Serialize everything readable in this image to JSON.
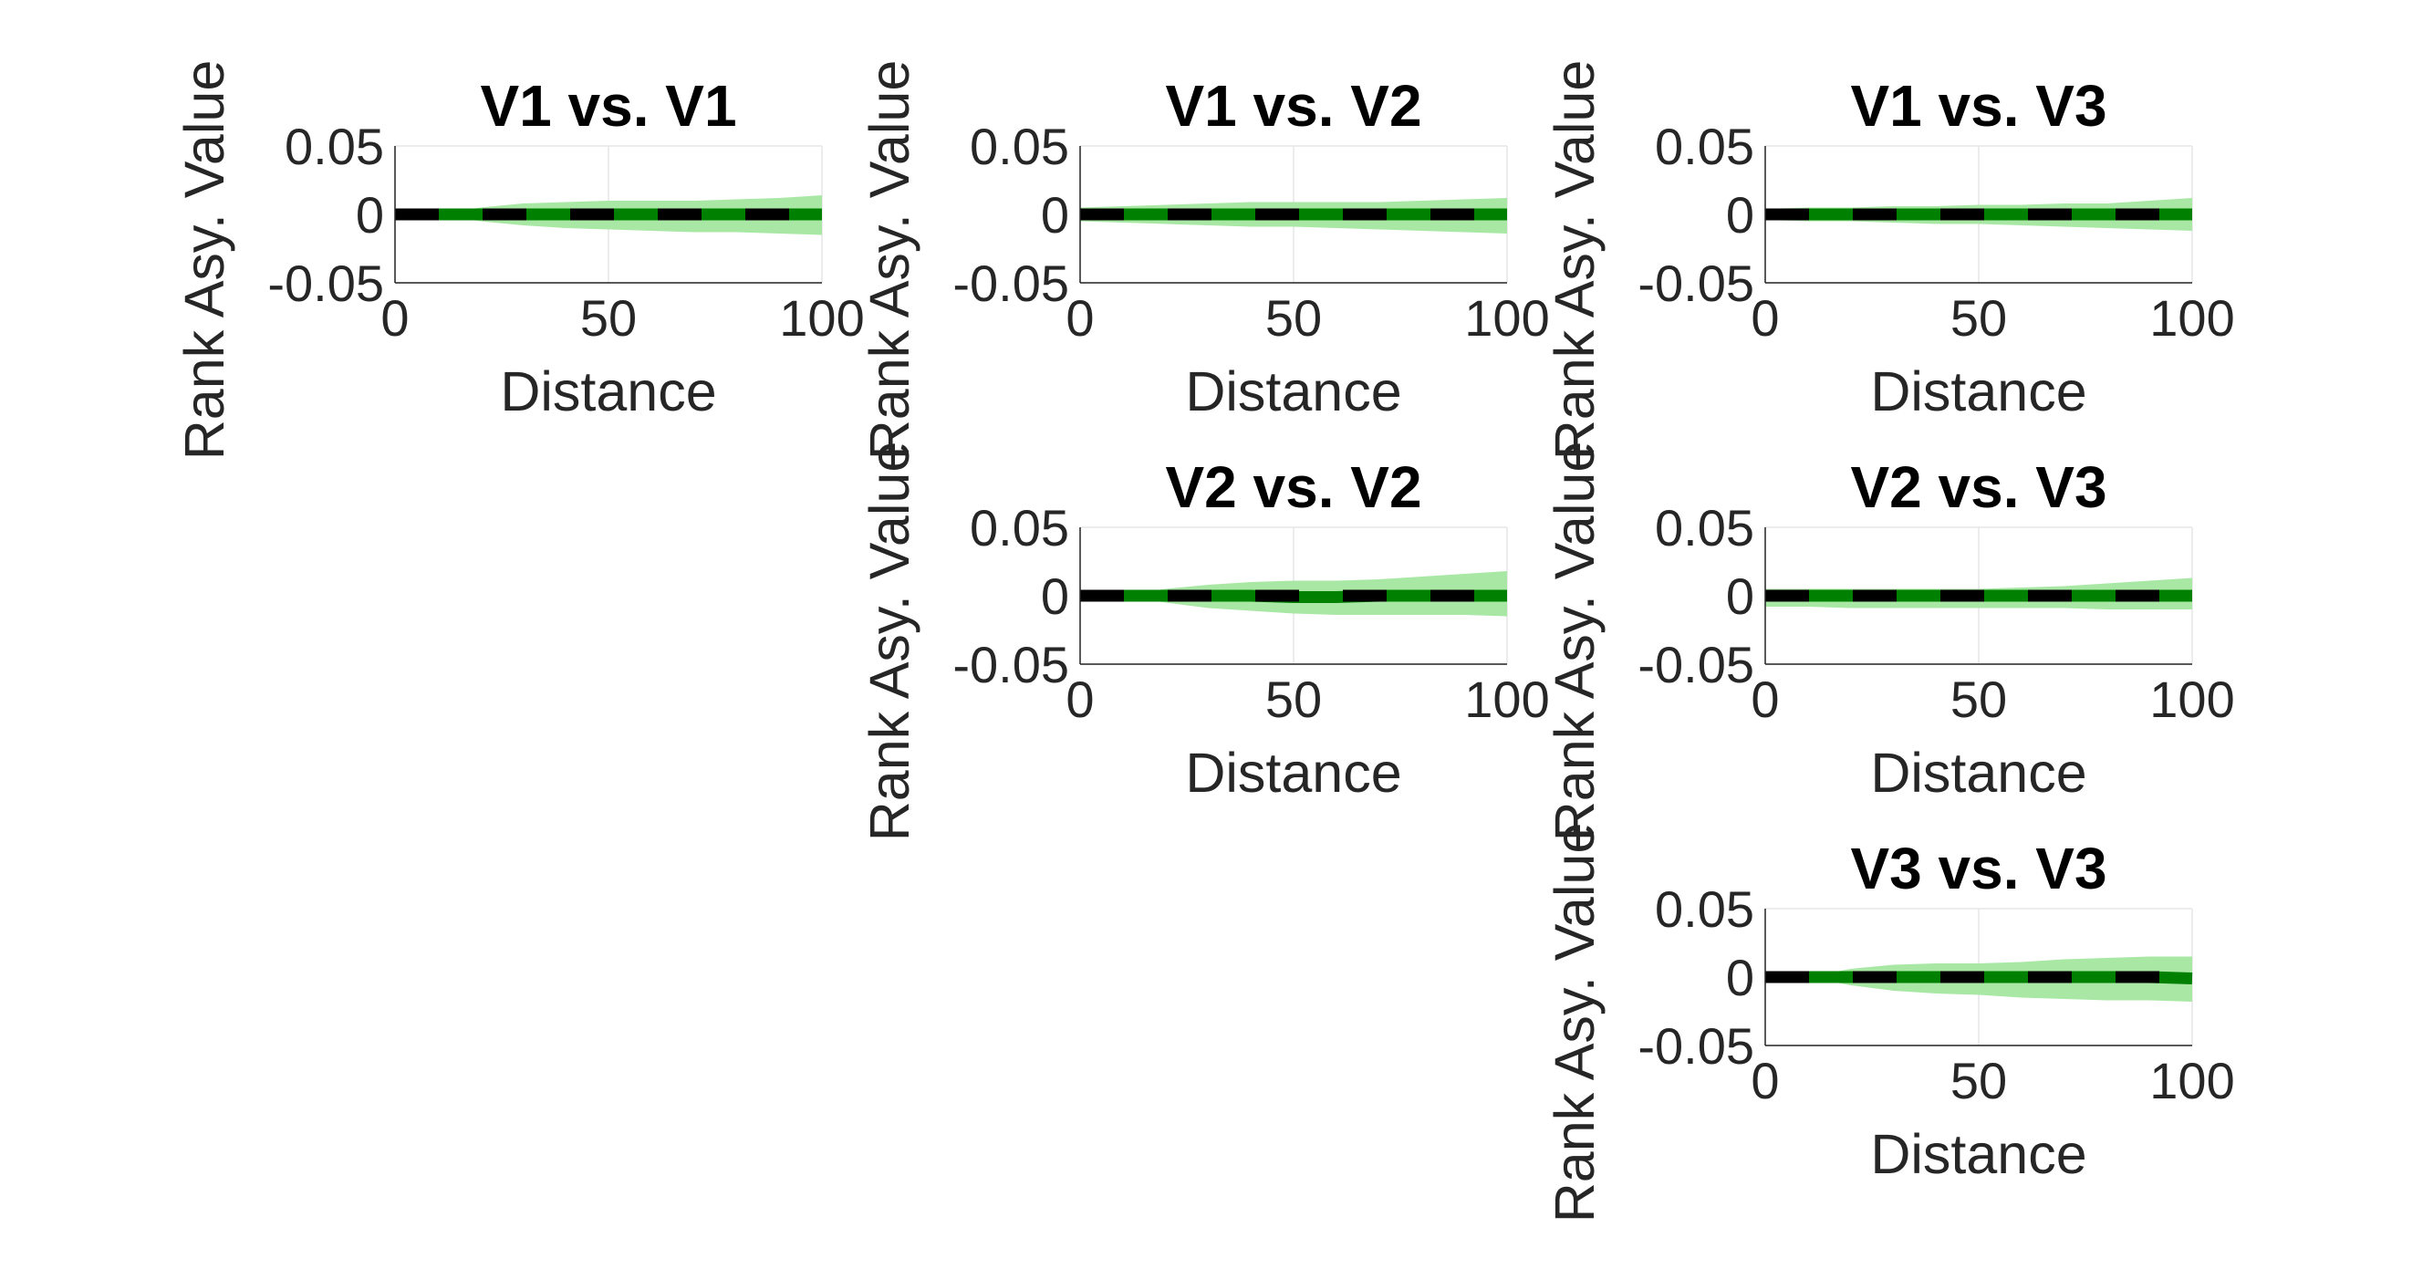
{
  "figure": {
    "background": "#ffffff",
    "band_color": "#a8e8a4",
    "median_color": "#008000",
    "zero_color": "#000000"
  },
  "chart_data": [
    {
      "type": "area",
      "title": "V1 vs. V1",
      "xlabel": "Distance",
      "ylabel": "Rank Asy. Value",
      "xlim": [
        0,
        100
      ],
      "ylim": [
        -0.05,
        0.05
      ],
      "xticks": [
        "0",
        "50",
        "100"
      ],
      "yticks": [
        "0.05",
        "0",
        "-0.05"
      ],
      "grid": true,
      "x": [
        0,
        10,
        20,
        30,
        40,
        50,
        60,
        70,
        80,
        90,
        100
      ],
      "series": [
        {
          "role": "band_upper",
          "values": [
            0,
            0,
            0.005,
            0.008,
            0.009,
            0.01,
            0.01,
            0.01,
            0.011,
            0.012,
            0.014
          ]
        },
        {
          "role": "band_lower",
          "values": [
            0,
            0,
            -0.005,
            -0.008,
            -0.01,
            -0.011,
            -0.012,
            -0.013,
            -0.013,
            -0.014,
            -0.015
          ]
        },
        {
          "role": "median",
          "values": [
            0,
            0,
            0,
            0,
            0,
            0,
            0,
            0,
            0,
            0,
            0
          ]
        },
        {
          "role": "zero",
          "values": [
            0,
            0,
            0,
            0,
            0,
            0,
            0,
            0,
            0,
            0,
            0
          ]
        }
      ]
    },
    {
      "type": "area",
      "title": "V1 vs. V2",
      "xlabel": "Distance",
      "ylabel": "Rank Asy. Value",
      "xlim": [
        0,
        100
      ],
      "ylim": [
        -0.05,
        0.05
      ],
      "xticks": [
        "0",
        "50",
        "100"
      ],
      "yticks": [
        "0.05",
        "0",
        "-0.05"
      ],
      "grid": true,
      "x": [
        0,
        10,
        20,
        30,
        40,
        50,
        60,
        70,
        80,
        90,
        100
      ],
      "series": [
        {
          "role": "band_upper",
          "values": [
            0.005,
            0.006,
            0.007,
            0.008,
            0.009,
            0.009,
            0.009,
            0.009,
            0.01,
            0.011,
            0.012
          ]
        },
        {
          "role": "band_lower",
          "values": [
            -0.005,
            -0.006,
            -0.007,
            -0.008,
            -0.009,
            -0.009,
            -0.01,
            -0.011,
            -0.012,
            -0.013,
            -0.014
          ]
        },
        {
          "role": "median",
          "values": [
            0,
            0,
            0,
            0,
            0,
            0,
            0,
            0,
            0,
            0,
            0
          ]
        },
        {
          "role": "zero",
          "values": [
            0,
            0,
            0,
            0,
            0,
            0,
            0,
            0,
            0,
            0,
            0
          ]
        }
      ]
    },
    {
      "type": "area",
      "title": "V1 vs. V3",
      "xlabel": "Distance",
      "ylabel": "Rank Asy. Value",
      "xlim": [
        0,
        100
      ],
      "ylim": [
        -0.05,
        0.05
      ],
      "xticks": [
        "0",
        "50",
        "100"
      ],
      "yticks": [
        "0.05",
        "0",
        "-0.05"
      ],
      "grid": true,
      "x": [
        0,
        10,
        20,
        30,
        40,
        50,
        60,
        70,
        80,
        90,
        100
      ],
      "series": [
        {
          "role": "band_upper",
          "values": [
            0.004,
            0.005,
            0.005,
            0.006,
            0.006,
            0.007,
            0.007,
            0.008,
            0.008,
            0.01,
            0.012
          ]
        },
        {
          "role": "band_lower",
          "values": [
            -0.004,
            -0.005,
            -0.005,
            -0.006,
            -0.007,
            -0.007,
            -0.008,
            -0.009,
            -0.01,
            -0.011,
            -0.012
          ]
        },
        {
          "role": "median",
          "values": [
            0,
            0,
            0,
            0,
            0,
            0,
            0,
            0,
            0,
            0,
            0
          ]
        },
        {
          "role": "zero",
          "values": [
            0,
            0,
            0,
            0,
            0,
            0,
            0,
            0,
            0,
            0,
            0
          ]
        }
      ]
    },
    {
      "type": "area",
      "title": "V2 vs. V2",
      "xlabel": "Distance",
      "ylabel": "Rank Asy. Value",
      "xlim": [
        0,
        100
      ],
      "ylim": [
        -0.05,
        0.05
      ],
      "xticks": [
        "0",
        "50",
        "100"
      ],
      "yticks": [
        "0.05",
        "0",
        "-0.05"
      ],
      "grid": true,
      "x": [
        0,
        10,
        20,
        30,
        40,
        50,
        60,
        70,
        80,
        90,
        100
      ],
      "series": [
        {
          "role": "band_upper",
          "values": [
            0,
            0,
            0.005,
            0.008,
            0.01,
            0.011,
            0.011,
            0.012,
            0.014,
            0.016,
            0.018
          ]
        },
        {
          "role": "band_lower",
          "values": [
            0,
            0,
            -0.005,
            -0.009,
            -0.011,
            -0.013,
            -0.014,
            -0.014,
            -0.014,
            -0.014,
            -0.015
          ]
        },
        {
          "role": "median",
          "values": [
            0,
            0,
            0,
            0,
            0,
            -0.001,
            -0.001,
            0,
            0,
            0,
            0
          ]
        },
        {
          "role": "zero",
          "values": [
            0,
            0,
            0,
            0,
            0,
            0,
            0,
            0,
            0,
            0,
            0
          ]
        }
      ]
    },
    {
      "type": "area",
      "title": "V2 vs. V3",
      "xlabel": "Distance",
      "ylabel": "Rank Asy. Value",
      "xlim": [
        0,
        100
      ],
      "ylim": [
        -0.05,
        0.05
      ],
      "xticks": [
        "0",
        "50",
        "100"
      ],
      "yticks": [
        "0.05",
        "0",
        "-0.05"
      ],
      "grid": true,
      "x": [
        0,
        10,
        20,
        30,
        40,
        50,
        60,
        70,
        80,
        90,
        100
      ],
      "series": [
        {
          "role": "band_upper",
          "values": [
            0.005,
            0.005,
            0.005,
            0.005,
            0.005,
            0.005,
            0.006,
            0.007,
            0.009,
            0.011,
            0.013
          ]
        },
        {
          "role": "band_lower",
          "values": [
            -0.008,
            -0.008,
            -0.009,
            -0.009,
            -0.009,
            -0.009,
            -0.009,
            -0.009,
            -0.01,
            -0.01,
            -0.01
          ]
        },
        {
          "role": "median",
          "values": [
            0,
            0,
            0,
            0,
            0,
            0,
            0,
            0,
            0,
            0,
            0
          ]
        },
        {
          "role": "zero",
          "values": [
            0,
            0,
            0,
            0,
            0,
            0,
            0,
            0,
            0,
            0,
            0
          ]
        }
      ]
    },
    {
      "type": "area",
      "title": "V3 vs. V3",
      "xlabel": "Distance",
      "ylabel": "Rank Asy. Value",
      "xlim": [
        0,
        100
      ],
      "ylim": [
        -0.05,
        0.05
      ],
      "xticks": [
        "0",
        "50",
        "100"
      ],
      "yticks": [
        "0.05",
        "0",
        "-0.05"
      ],
      "grid": true,
      "x": [
        0,
        10,
        20,
        30,
        40,
        50,
        60,
        70,
        80,
        90,
        100
      ],
      "series": [
        {
          "role": "band_upper",
          "values": [
            0,
            0,
            0.006,
            0.009,
            0.01,
            0.01,
            0.011,
            0.013,
            0.014,
            0.015,
            0.015
          ]
        },
        {
          "role": "band_lower",
          "values": [
            0,
            0,
            -0.006,
            -0.01,
            -0.012,
            -0.013,
            -0.015,
            -0.016,
            -0.017,
            -0.017,
            -0.018
          ]
        },
        {
          "role": "median",
          "values": [
            0,
            0,
            0,
            0,
            0,
            0,
            0,
            0,
            0,
            0,
            -0.001
          ]
        },
        {
          "role": "zero",
          "values": [
            0,
            0,
            0,
            0,
            0,
            0,
            0,
            0,
            0,
            0,
            0
          ]
        }
      ]
    }
  ]
}
